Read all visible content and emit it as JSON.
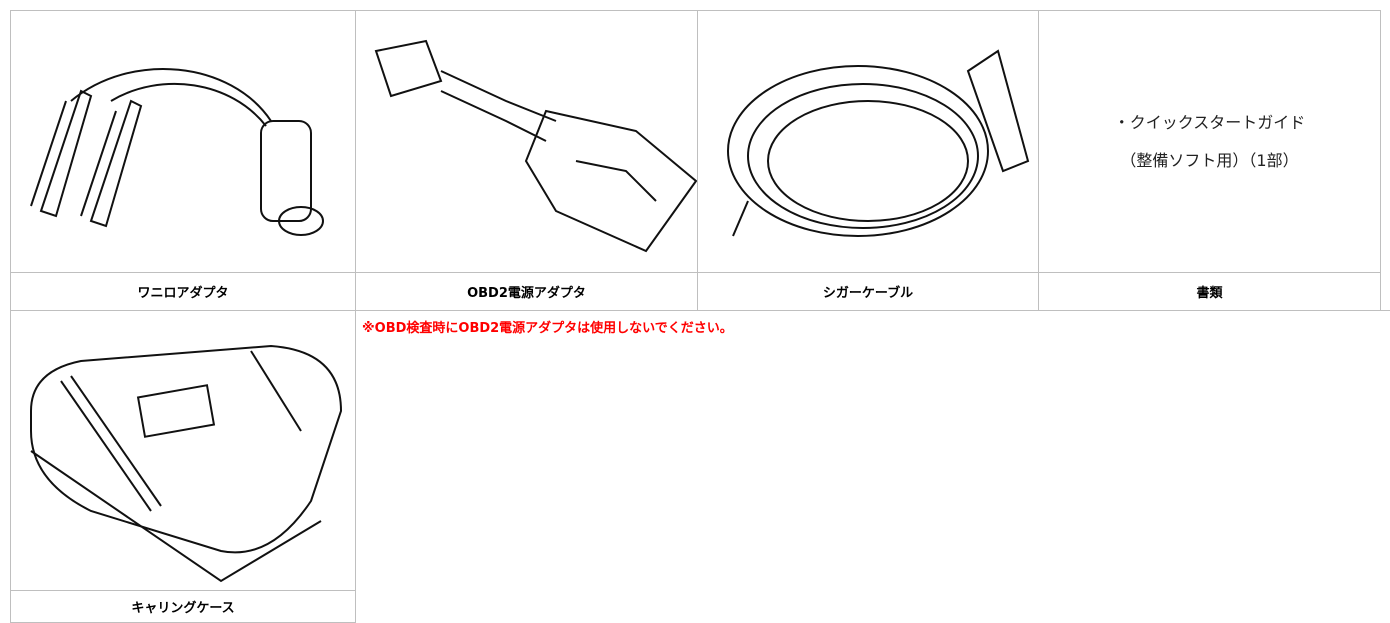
{
  "items": [
    {
      "label": "ワニロアダプタ"
    },
    {
      "label": "OBD2電源アダプタ"
    },
    {
      "label": "シガーケーブル"
    },
    {
      "label": "書類",
      "contents": [
        "・クイックスタートガイド",
        "（整備ソフト用）（1部）"
      ]
    },
    {
      "label": "キャリングケース"
    }
  ],
  "note": "※OBD検査時にOBD2電源アダプタは使用しないでください。"
}
